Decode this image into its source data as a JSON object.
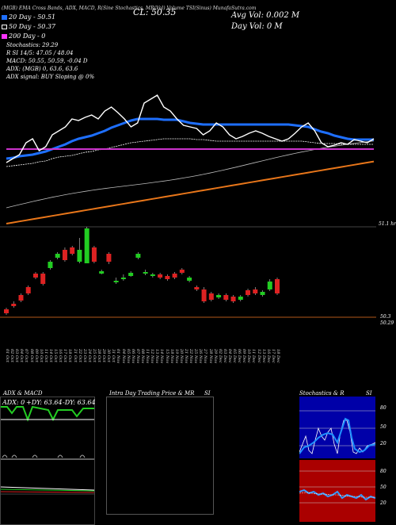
{
  "header": {
    "indicators_line": "(MGB) EMA Cross Bands, ADX, MACD, R(Sine Stochastics, MR(Vol) Volume TSI(Sinus) MunafaSutra.com",
    "price_text": "CL: 50.35",
    "avg_vol": "Avg Vol: 0.002  M",
    "day_vol": "Day Vol: 0  M"
  },
  "legend": [
    {
      "label": "20  Day - 50.51",
      "color": "#1e6fff"
    },
    {
      "label": "50  Day - 50.37",
      "color": "#ffffff"
    },
    {
      "label": "200  Day - 0",
      "color": "#ff33ff"
    }
  ],
  "info_lines": [
    "Stochastics: 29.29",
    "R               SI 14/5: 47.05 / 48.04",
    "MACD: 50.55,  50.59,  -0.04  D",
    "ADX:                         (MGB) 0,  63.6,  63.6",
    "ADX  signal:                        BUY Sloping @ 0%"
  ],
  "right_labels": {
    "ma_pane": "51.1 hr",
    "vol_top": "50.3",
    "vol_bottom": "50.29"
  },
  "date_labels": [
    "01 Oct",
    "02 Oct",
    "03 Oct",
    "04 Oct",
    "07 Oct",
    "08 Oct",
    "09 Oct",
    "10 Oct",
    "11 Oct",
    "14 Oct",
    "15 Oct",
    "16 Oct",
    "17 Oct",
    "18 Oct",
    "21 Oct",
    "22 Oct",
    "23 Oct",
    "24 Oct",
    "25 Oct",
    "28 Oct",
    "29 Oct",
    "30 Oct",
    "31 Oct",
    "01 Nov",
    "04 Nov",
    "05 Nov",
    "06 Nov",
    "07 Nov",
    "08 Nov",
    "11 Nov",
    "12 Nov",
    "13 Nov",
    "14 Nov",
    "15 Nov",
    "18 Nov",
    "19 Nov",
    "20 Nov",
    "21 Nov",
    "22 Nov",
    "25 Nov",
    "26 Nov",
    "27 Nov",
    "28 Nov",
    "29 Nov",
    "02 Dec",
    "03 Dec",
    "04 Dec",
    "05 Dec",
    "06 Dec",
    "09 Dec",
    "10 Dec",
    "11 Dec",
    "12 Dec",
    "13 Dec",
    "16 Dec",
    "17 Dec",
    "18 Dec"
  ],
  "panels": {
    "adx": {
      "title": "ADX  & MACD",
      "adx_text": "ADX: 0",
      "plus_di": "+DY: 63.64",
      "minus_di": "-DY: 63.64"
    },
    "intraday": {
      "title": "Intra Day Trading Price  & MR",
      "title_right": "SI"
    },
    "stoch": {
      "title": "Stochastics  & R",
      "title_right": "SI",
      "ticks_top": [
        "80",
        "50",
        "20"
      ],
      "ticks_bottom": [
        "80",
        "50",
        "20"
      ]
    }
  },
  "colors": {
    "ema20": "#1e6fff",
    "ema50": "#ffffff",
    "ema200": "#cc33cc",
    "orange": "#e8761a",
    "up": "#22cc22",
    "down": "#dd2222",
    "stoch_bg": "#0000a8",
    "rsi_bg": "#aa0000"
  },
  "chart_data": {
    "type": "line",
    "title": "",
    "series": [
      {
        "name": "20  Day - 50.51",
        "values": [
          200,
          199,
          197,
          196,
          195,
          193,
          191,
          188,
          185,
          182,
          178,
          175,
          173,
          171,
          168,
          165,
          161,
          158,
          155,
          152,
          150,
          150,
          150,
          150,
          151,
          151,
          151,
          153,
          155,
          156,
          157,
          157,
          157,
          157,
          157,
          157,
          157,
          157,
          157,
          157,
          157,
          157,
          157,
          157,
          158,
          159,
          160,
          163,
          166,
          168,
          171,
          173,
          175,
          176,
          176,
          176,
          176
        ]
      },
      {
        "name": "50  Day - 50.37",
        "values": [
          210,
          209,
          208,
          207,
          206,
          204,
          203,
          200,
          198,
          197,
          196,
          194,
          192,
          191,
          189,
          188,
          186,
          184,
          182,
          180,
          179,
          178,
          177,
          176,
          175,
          175,
          175,
          175,
          175,
          176,
          176,
          177,
          178,
          178,
          178,
          178,
          178,
          178,
          178,
          178,
          178,
          178,
          178,
          178,
          178,
          178,
          179,
          180,
          181,
          181,
          181,
          182,
          182,
          182,
          182,
          182,
          182
        ]
      },
      {
        "name": "200  Day - 0",
        "values": [
          188,
          188,
          188,
          188,
          188,
          188,
          188,
          188,
          188,
          188,
          188,
          188,
          188,
          188,
          188,
          188,
          188,
          188,
          188,
          188,
          188,
          188,
          188,
          188,
          188,
          188,
          188,
          188,
          188,
          188,
          188,
          188,
          188,
          188,
          188,
          188,
          188,
          188,
          188,
          188,
          188,
          188,
          188,
          188,
          188,
          188,
          188,
          188,
          188,
          188,
          188,
          188,
          188,
          188,
          188,
          188,
          188
        ]
      },
      {
        "name": "",
        "values": [
          205,
          200,
          195,
          180,
          175,
          190,
          185,
          170,
          165,
          160,
          150,
          152,
          148,
          145,
          150,
          140,
          135,
          142,
          150,
          160,
          155,
          130,
          125,
          120,
          135,
          140,
          150,
          158,
          160,
          162,
          170,
          165,
          155,
          160,
          170,
          175,
          172,
          168,
          165,
          168,
          172,
          175,
          178,
          175,
          168,
          160,
          155,
          165,
          180,
          185,
          183,
          180,
          182,
          176,
          178,
          180,
          175
        ]
      }
    ],
    "candles": [
      {
        "i": 0,
        "o": 395,
        "c": 390,
        "h": 397,
        "l": 388,
        "dir": "down"
      },
      {
        "i": 1,
        "o": 386,
        "c": 383,
        "h": 388,
        "l": 380,
        "dir": "down"
      },
      {
        "i": 2,
        "o": 379,
        "c": 372,
        "h": 381,
        "l": 370,
        "dir": "down"
      },
      {
        "i": 3,
        "o": 370,
        "c": 362,
        "h": 372,
        "l": 360,
        "dir": "down"
      },
      {
        "i": 4,
        "o": 350,
        "c": 345,
        "h": 352,
        "l": 343,
        "dir": "down"
      },
      {
        "i": 5,
        "o": 358,
        "c": 345,
        "h": 360,
        "l": 343,
        "dir": "down"
      },
      {
        "i": 6,
        "o": 338,
        "c": 330,
        "h": 340,
        "l": 328,
        "dir": "up"
      },
      {
        "i": 7,
        "o": 325,
        "c": 320,
        "h": 327,
        "l": 318,
        "dir": "up"
      },
      {
        "i": 8,
        "o": 328,
        "c": 315,
        "h": 330,
        "l": 312,
        "dir": "down"
      },
      {
        "i": 9,
        "o": 312,
        "c": 320,
        "h": 322,
        "l": 310,
        "dir": "down"
      },
      {
        "i": 10,
        "o": 330,
        "c": 315,
        "h": 332,
        "l": 300,
        "dir": "up"
      },
      {
        "i": 11,
        "o": 332,
        "c": 288,
        "h": 332,
        "l": 286,
        "dir": "up"
      },
      {
        "i": 12,
        "o": 330,
        "c": 312,
        "h": 332,
        "l": 310,
        "dir": "down"
      },
      {
        "i": 13,
        "o": 345,
        "c": 342,
        "h": 346,
        "l": 340,
        "dir": "up"
      },
      {
        "i": 14,
        "o": 330,
        "c": 320,
        "h": 333,
        "l": 318,
        "dir": "down"
      },
      {
        "i": 15,
        "o": 356,
        "c": 354,
        "h": 358,
        "l": 350,
        "dir": "up"
      },
      {
        "i": 16,
        "o": 352,
        "c": 350,
        "h": 354,
        "l": 346,
        "dir": "up"
      },
      {
        "i": 17,
        "o": 348,
        "c": 344,
        "h": 349,
        "l": 342,
        "dir": "up"
      },
      {
        "i": 18,
        "o": 325,
        "c": 320,
        "h": 327,
        "l": 318,
        "dir": "up"
      },
      {
        "i": 19,
        "o": 345,
        "c": 343,
        "h": 347,
        "l": 340,
        "dir": "up"
      },
      {
        "i": 20,
        "o": 348,
        "c": 346,
        "h": 350,
        "l": 344,
        "dir": "up"
      },
      {
        "i": 21,
        "o": 350,
        "c": 346,
        "h": 352,
        "l": 344,
        "dir": "down"
      },
      {
        "i": 22,
        "o": 352,
        "c": 348,
        "h": 354,
        "l": 346,
        "dir": "down"
      },
      {
        "i": 23,
        "o": 350,
        "c": 345,
        "h": 352,
        "l": 343,
        "dir": "down"
      },
      {
        "i": 24,
        "o": 344,
        "c": 340,
        "h": 346,
        "l": 338,
        "dir": "down"
      },
      {
        "i": 25,
        "o": 354,
        "c": 350,
        "h": 356,
        "l": 348,
        "dir": "up"
      },
      {
        "i": 26,
        "o": 365,
        "c": 362,
        "h": 367,
        "l": 360,
        "dir": "down"
      },
      {
        "i": 27,
        "o": 380,
        "c": 365,
        "h": 382,
        "l": 362,
        "dir": "down"
      },
      {
        "i": 28,
        "o": 378,
        "c": 370,
        "h": 380,
        "l": 368,
        "dir": "down"
      },
      {
        "i": 29,
        "o": 375,
        "c": 372,
        "h": 377,
        "l": 370,
        "dir": "up"
      },
      {
        "i": 30,
        "o": 378,
        "c": 372,
        "h": 380,
        "l": 370,
        "dir": "down"
      },
      {
        "i": 31,
        "o": 380,
        "c": 374,
        "h": 382,
        "l": 372,
        "dir": "down"
      },
      {
        "i": 32,
        "o": 378,
        "c": 374,
        "h": 380,
        "l": 372,
        "dir": "up"
      },
      {
        "i": 33,
        "o": 372,
        "c": 366,
        "h": 374,
        "l": 364,
        "dir": "down"
      },
      {
        "i": 34,
        "o": 370,
        "c": 365,
        "h": 372,
        "l": 362,
        "dir": "down"
      },
      {
        "i": 35,
        "o": 372,
        "c": 368,
        "h": 374,
        "l": 366,
        "dir": "up"
      },
      {
        "i": 36,
        "o": 365,
        "c": 355,
        "h": 367,
        "l": 352,
        "dir": "up"
      },
      {
        "i": 37,
        "o": 370,
        "c": 352,
        "h": 372,
        "l": 350,
        "dir": "down"
      }
    ]
  }
}
